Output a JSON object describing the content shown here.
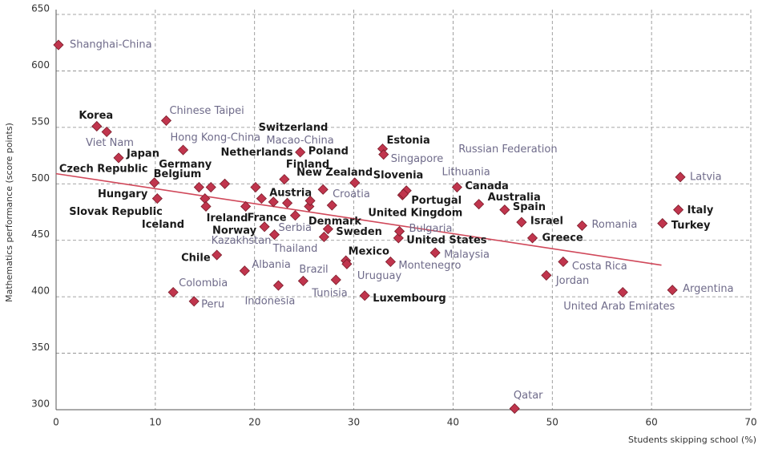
{
  "chart_data": {
    "type": "scatter",
    "xlabel": "Students skipping school (%)",
    "ylabel": "Mathematics performance (score points)",
    "xlim": [
      0,
      70
    ],
    "xticks": [
      0,
      10,
      20,
      30,
      40,
      50,
      60,
      70
    ],
    "ylim": [
      300,
      650
    ],
    "yticks": [
      300,
      350,
      400,
      450,
      500,
      550,
      600,
      650
    ],
    "grid": true,
    "marker_color": "#c0354d",
    "trend": {
      "color": "#d0485a",
      "x": [
        0,
        61
      ],
      "y": [
        509,
        428
      ]
    },
    "series": [
      {
        "color": "#1a1a1a",
        "labels": [
          "Korea",
          "Japan",
          "Czech Republic",
          "Hungary",
          "Slovak Republic",
          "Iceland",
          "Belgium",
          "Germany",
          "Netherlands",
          "Ireland",
          "Switzerland",
          "Austria",
          "Finland",
          "Poland",
          "Norway",
          "France",
          "New Zealand",
          "Denmark",
          "Slovenia",
          "United Kingdom",
          "Sweden",
          "Estonia",
          "Portugal",
          "United States",
          "Mexico",
          "Luxembourg",
          "Chile",
          "Canada",
          "Australia",
          "Spain",
          "Israel",
          "Greece",
          "Italy",
          "Turkey"
        ],
        "x": [
          4.1,
          6.3,
          9.9,
          10.2,
          15.0,
          15.1,
          14.4,
          15.6,
          17.0,
          19.1,
          20.1,
          21.9,
          23.0,
          24.6,
          21.0,
          23.3,
          26.9,
          25.5,
          30.1,
          27.8,
          27.4,
          32.9,
          34.9,
          34.5,
          29.2,
          31.1,
          16.2,
          40.4,
          42.6,
          45.2,
          46.9,
          48.0,
          62.7,
          61.1
        ],
        "values": [
          551,
          523,
          501,
          487,
          487,
          480,
          497,
          497,
          500,
          480,
          497,
          484,
          504,
          528,
          462,
          483,
          495,
          480,
          501,
          481,
          460,
          531,
          490,
          452,
          432,
          401,
          437,
          497,
          482,
          477,
          466,
          452,
          477,
          465
        ]
      },
      {
        "color": "#6f6b8a",
        "labels": [
          "Shanghai-China",
          "Viet Nam",
          "Chinese Taipei",
          "Hong Kong-China",
          "Macao-China",
          "Croatia",
          "Serbia",
          "Kazakhstan",
          "Thailand",
          "Singapore",
          "Russian Federation",
          "Lithuania",
          "Bulgaria",
          "Montenegro",
          "Malaysia",
          "Uruguay",
          "Tunisia",
          "Brazil",
          "Indonesia",
          "Albania",
          "Colombia",
          "Peru",
          "Romania",
          "Costa Rica",
          "Jordan",
          "United Arab Emirates",
          "Argentina",
          "Latvia",
          "Qatar"
        ],
        "x": [
          0.24,
          5.1,
          11.1,
          12.8,
          20.7,
          25.6,
          24.1,
          22.0,
          27.0,
          33.0,
          35.3,
          35.0,
          34.6,
          33.7,
          38.2,
          29.3,
          28.2,
          24.9,
          22.4,
          19.0,
          11.8,
          13.9,
          53.0,
          51.1,
          49.4,
          57.1,
          62.1,
          62.9,
          46.2
        ],
        "values": [
          623,
          546,
          556,
          530,
          487,
          485,
          472,
          455,
          453,
          526,
          494,
          491,
          458,
          431,
          439,
          429,
          415,
          414,
          410,
          423,
          404,
          396,
          463,
          431,
          419,
          404,
          406,
          506,
          301
        ]
      }
    ]
  }
}
